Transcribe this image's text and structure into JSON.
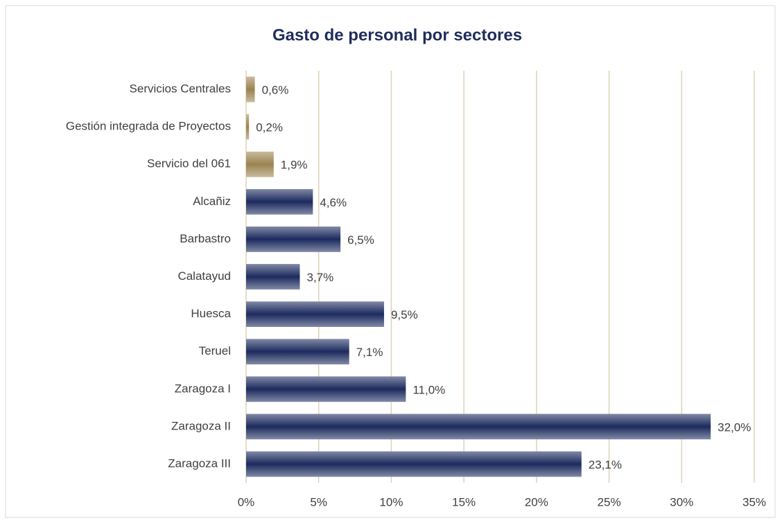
{
  "chart_data": {
    "type": "bar",
    "orientation": "horizontal",
    "title": "Gasto de personal por sectores",
    "categories": [
      "Servicios Centrales",
      "Gestión integrada de Proyectos",
      "Servicio del 061",
      "Alcañiz",
      "Barbastro",
      "Calatayud",
      "Huesca",
      "Teruel",
      "Zaragoza I",
      "Zaragoza II",
      "Zaragoza III"
    ],
    "values": [
      0.6,
      0.2,
      1.9,
      4.6,
      6.5,
      3.7,
      9.5,
      7.1,
      11.0,
      32.0,
      23.1
    ],
    "value_labels": [
      "0,6%",
      "0,2%",
      "1,9%",
      "4,6%",
      "6,5%",
      "3,7%",
      "9,5%",
      "7,1%",
      "11,0%",
      "32,0%",
      "23,1%"
    ],
    "colors": [
      "#9b8350",
      "#9b8350",
      "#9b8350",
      "#1c2a5e",
      "#1c2a5e",
      "#1c2a5e",
      "#1c2a5e",
      "#1c2a5e",
      "#1c2a5e",
      "#1c2a5e",
      "#1c2a5e"
    ],
    "xlim": [
      0,
      35
    ],
    "xticks": [
      {
        "value": 0,
        "label": "0%"
      },
      {
        "value": 5,
        "label": "5%"
      },
      {
        "value": 10,
        "label": "10%"
      },
      {
        "value": 15,
        "label": "15%"
      },
      {
        "value": 20,
        "label": "20%"
      },
      {
        "value": 25,
        "label": "25%"
      },
      {
        "value": 30,
        "label": "30%"
      },
      {
        "value": 35,
        "label": "35%"
      }
    ],
    "grid": true
  }
}
